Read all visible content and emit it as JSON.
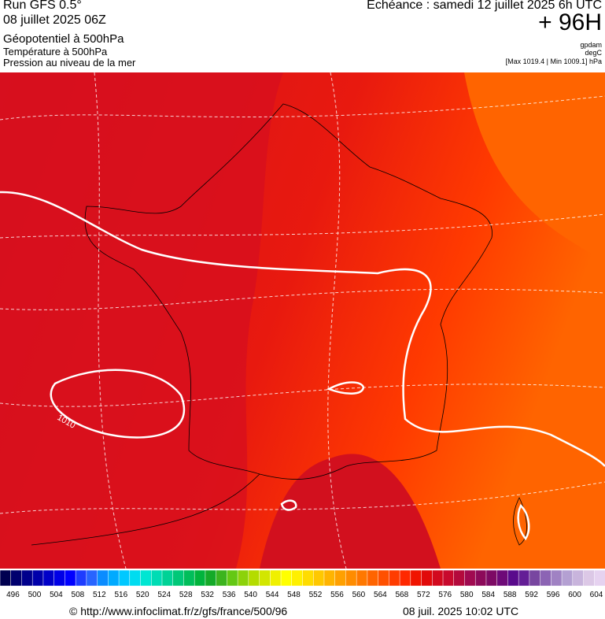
{
  "header": {
    "run": "Run GFS 0.5°",
    "date": "08 juillet 2025 06Z",
    "field_main": "Géopotentiel à 500hPa",
    "field_2": "Température à 500hPa",
    "field_3": "Pression au niveau de la mer",
    "valid": "Echéance : samedi 12 juillet 2025 6h UTC",
    "lead": "+ 96H",
    "unit_1": "gpdam",
    "unit_2": "degC",
    "range": "[Max 1019.4 | Min 1009.1] hPa"
  },
  "map": {
    "contour_label": "1010"
  },
  "colorbar": {
    "labels": [
      496,
      500,
      504,
      508,
      512,
      516,
      520,
      524,
      528,
      532,
      536,
      540,
      544,
      548,
      552,
      556,
      560,
      564,
      568,
      572,
      576,
      580,
      584,
      588,
      592,
      596,
      600,
      604
    ],
    "colors": [
      "#000050",
      "#00006e",
      "#00008c",
      "#0000aa",
      "#0000c8",
      "#0000e6",
      "#0000ff",
      "#1e3cff",
      "#2864ff",
      "#0a8cff",
      "#00aaff",
      "#00c8ff",
      "#00dcf0",
      "#00e6d2",
      "#00dcb4",
      "#00d296",
      "#00c878",
      "#00be5a",
      "#00b43c",
      "#14aa28",
      "#3cb41e",
      "#64c814",
      "#8cd20a",
      "#b4dc00",
      "#d2e600",
      "#f0f000",
      "#ffff00",
      "#fff000",
      "#ffdc00",
      "#ffc800",
      "#ffb400",
      "#ffa000",
      "#ff8c00",
      "#ff7800",
      "#ff6400",
      "#ff5000",
      "#ff3c00",
      "#ff2800",
      "#f01400",
      "#e10a0a",
      "#d20a1e",
      "#c80a2d",
      "#b40a3c",
      "#a00a50",
      "#8c0a5a",
      "#7d0a64",
      "#6e0a78",
      "#5a0a8c",
      "#641e96",
      "#7846a0",
      "#8c64b4",
      "#a082c3",
      "#b4a0d2",
      "#c8b4dc",
      "#dcc8e6",
      "#e6d2f0"
    ]
  },
  "footer": {
    "source": "© http://www.infoclimat.fr/z/gfs/france/500/96",
    "generated": "08 juil. 2025 10:02 UTC"
  }
}
